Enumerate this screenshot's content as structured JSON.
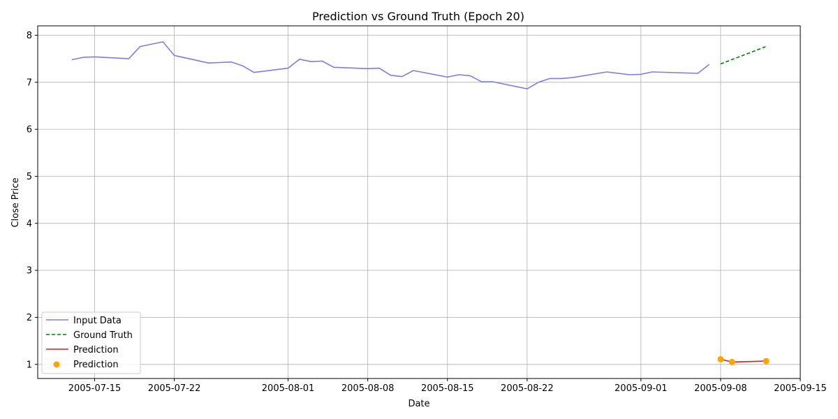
{
  "chart_data": {
    "type": "line",
    "title": "Prediction vs Ground Truth (Epoch 20)",
    "xlabel": "Date",
    "ylabel": "Close Price",
    "xlim": [
      "2005-07-10",
      "2005-09-15"
    ],
    "ylim": [
      0.7,
      8.2
    ],
    "grid": true,
    "legend_position": "lower-left",
    "x_ticks": [
      "2005-07-15",
      "2005-07-22",
      "2005-08-01",
      "2005-08-08",
      "2005-08-15",
      "2005-08-22",
      "2005-09-01",
      "2005-09-08",
      "2005-09-15"
    ],
    "y_ticks": [
      1,
      2,
      3,
      4,
      5,
      6,
      7,
      8
    ],
    "series": [
      {
        "name": "Input Data",
        "kind": "line",
        "style": "solid",
        "color": "#7b7bf5",
        "x": [
          "2005-07-13",
          "2005-07-14",
          "2005-07-15",
          "2005-07-18",
          "2005-07-19",
          "2005-07-21",
          "2005-07-22",
          "2005-07-25",
          "2005-07-26",
          "2005-07-27",
          "2005-07-28",
          "2005-07-29",
          "2005-08-01",
          "2005-08-02",
          "2005-08-03",
          "2005-08-04",
          "2005-08-05",
          "2005-08-08",
          "2005-08-09",
          "2005-08-10",
          "2005-08-11",
          "2005-08-12",
          "2005-08-15",
          "2005-08-16",
          "2005-08-17",
          "2005-08-18",
          "2005-08-19",
          "2005-08-22",
          "2005-08-23",
          "2005-08-24",
          "2005-08-25",
          "2005-08-26",
          "2005-08-29",
          "2005-08-31",
          "2005-09-01",
          "2005-09-02",
          "2005-09-06",
          "2005-09-07"
        ],
        "y": [
          7.48,
          7.53,
          7.54,
          7.5,
          7.76,
          7.86,
          7.57,
          7.41,
          7.42,
          7.43,
          7.35,
          7.21,
          7.3,
          7.49,
          7.44,
          7.45,
          7.32,
          7.29,
          7.3,
          7.15,
          7.12,
          7.25,
          7.11,
          7.16,
          7.14,
          7.01,
          7.01,
          6.86,
          7.0,
          7.08,
          7.08,
          7.1,
          7.22,
          7.16,
          7.17,
          7.22,
          7.19,
          7.38
        ]
      },
      {
        "name": "Ground Truth",
        "kind": "line",
        "style": "dashed",
        "color": "#008000",
        "x": [
          "2005-09-08",
          "2005-09-12"
        ],
        "y": [
          7.39,
          7.76
        ]
      },
      {
        "name": "Prediction",
        "kind": "line",
        "style": "solid",
        "color": "#d62020",
        "x": [
          "2005-09-08",
          "2005-09-09",
          "2005-09-12"
        ],
        "y": [
          1.11,
          1.05,
          1.07
        ]
      },
      {
        "name": "Prediction",
        "kind": "scatter",
        "color": "#ffa500",
        "x": [
          "2005-09-08",
          "2005-09-09",
          "2005-09-12"
        ],
        "y": [
          1.11,
          1.05,
          1.07
        ]
      }
    ]
  }
}
